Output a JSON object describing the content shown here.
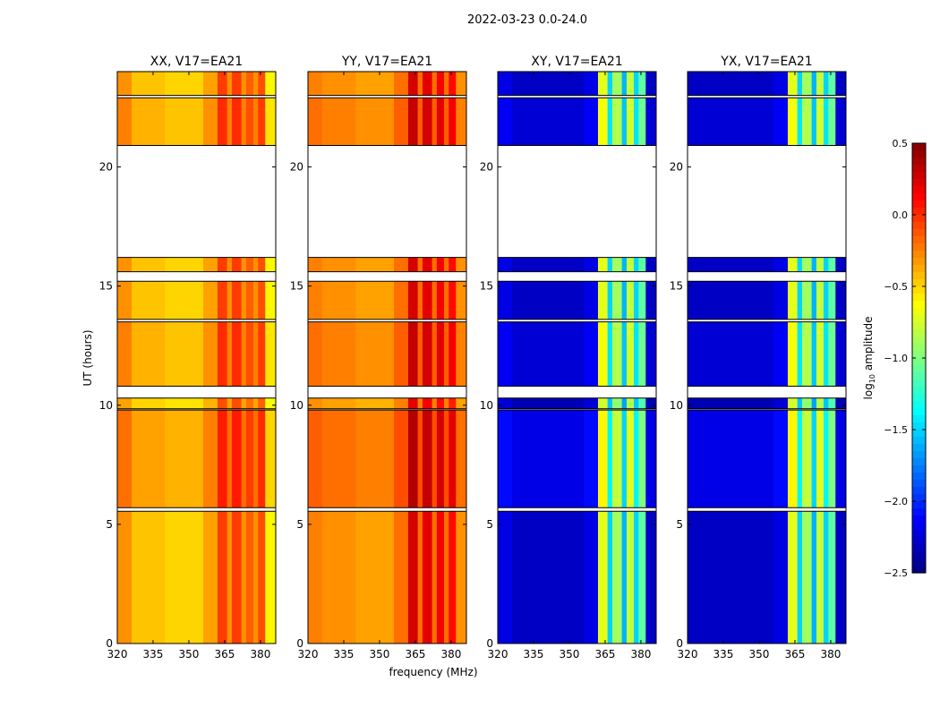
{
  "chart_data": {
    "type": "heatmap",
    "suptitle": "2022-03-23 0.0-24.0",
    "xlabel": "frequency (MHz)",
    "ylabel": "UT (hours)",
    "xlim": [
      320,
      386.4
    ],
    "ylim": [
      0,
      24
    ],
    "xticks": [
      "320",
      "335",
      "350",
      "365",
      "380"
    ],
    "xtick_values": [
      320,
      335,
      350,
      365,
      380
    ],
    "yticks": [
      "0",
      "5",
      "10",
      "15",
      "20"
    ],
    "ytick_values": [
      0,
      5,
      10,
      15,
      20
    ],
    "time_segments": [
      [
        0.0,
        5.55
      ],
      [
        5.7,
        9.8
      ],
      [
        9.85,
        10.3
      ],
      [
        10.8,
        13.5
      ],
      [
        13.6,
        15.2
      ],
      [
        15.6,
        16.2
      ],
      [
        20.9,
        22.9
      ],
      [
        23.0,
        24.0
      ]
    ],
    "segment_offsets": [
      0.0,
      0.1,
      -0.05,
      0.05,
      0.0,
      0.0,
      0.05,
      0.0
    ],
    "freq_bin_edges": [
      320,
      326,
      340,
      356,
      362,
      366,
      368,
      372,
      374,
      377,
      379,
      382,
      386.4
    ],
    "panels": [
      {
        "title": "XX, V17=EA21",
        "log_amplitude": [
          -0.3,
          -0.45,
          -0.5,
          -0.35,
          -0.05,
          -0.3,
          -0.05,
          -0.3,
          -0.15,
          -0.3,
          -0.1,
          -0.6
        ]
      },
      {
        "title": "YY, V17=EA21",
        "log_amplitude": [
          -0.25,
          -0.3,
          -0.35,
          -0.2,
          0.25,
          -0.2,
          0.2,
          -0.2,
          0.15,
          -0.2,
          0.1,
          -0.3
        ]
      },
      {
        "title": "XY, V17=EA21",
        "log_amplitude": [
          -2.2,
          -2.3,
          -2.3,
          -2.2,
          -0.7,
          -1.5,
          -0.9,
          -1.6,
          -0.8,
          -1.5,
          -1.1,
          -2.3
        ]
      },
      {
        "title": "YX, V17=EA21",
        "log_amplitude": [
          -2.3,
          -2.3,
          -2.3,
          -2.2,
          -0.7,
          -1.5,
          -0.9,
          -1.6,
          -0.8,
          -1.5,
          -1.1,
          -2.3
        ]
      }
    ],
    "colorbar": {
      "label": "log10 amplitude",
      "label_main": "log",
      "label_sub": "10",
      "label_rest": " amplitude",
      "range": [
        -2.5,
        0.5
      ],
      "ticks": [
        "0.5",
        "0.0",
        "−0.5",
        "−1.0",
        "−1.5",
        "−2.0",
        "−2.5"
      ],
      "tick_values": [
        0.5,
        0.0,
        -0.5,
        -1.0,
        -1.5,
        -2.0,
        -2.5
      ],
      "colormap": "jet"
    }
  }
}
